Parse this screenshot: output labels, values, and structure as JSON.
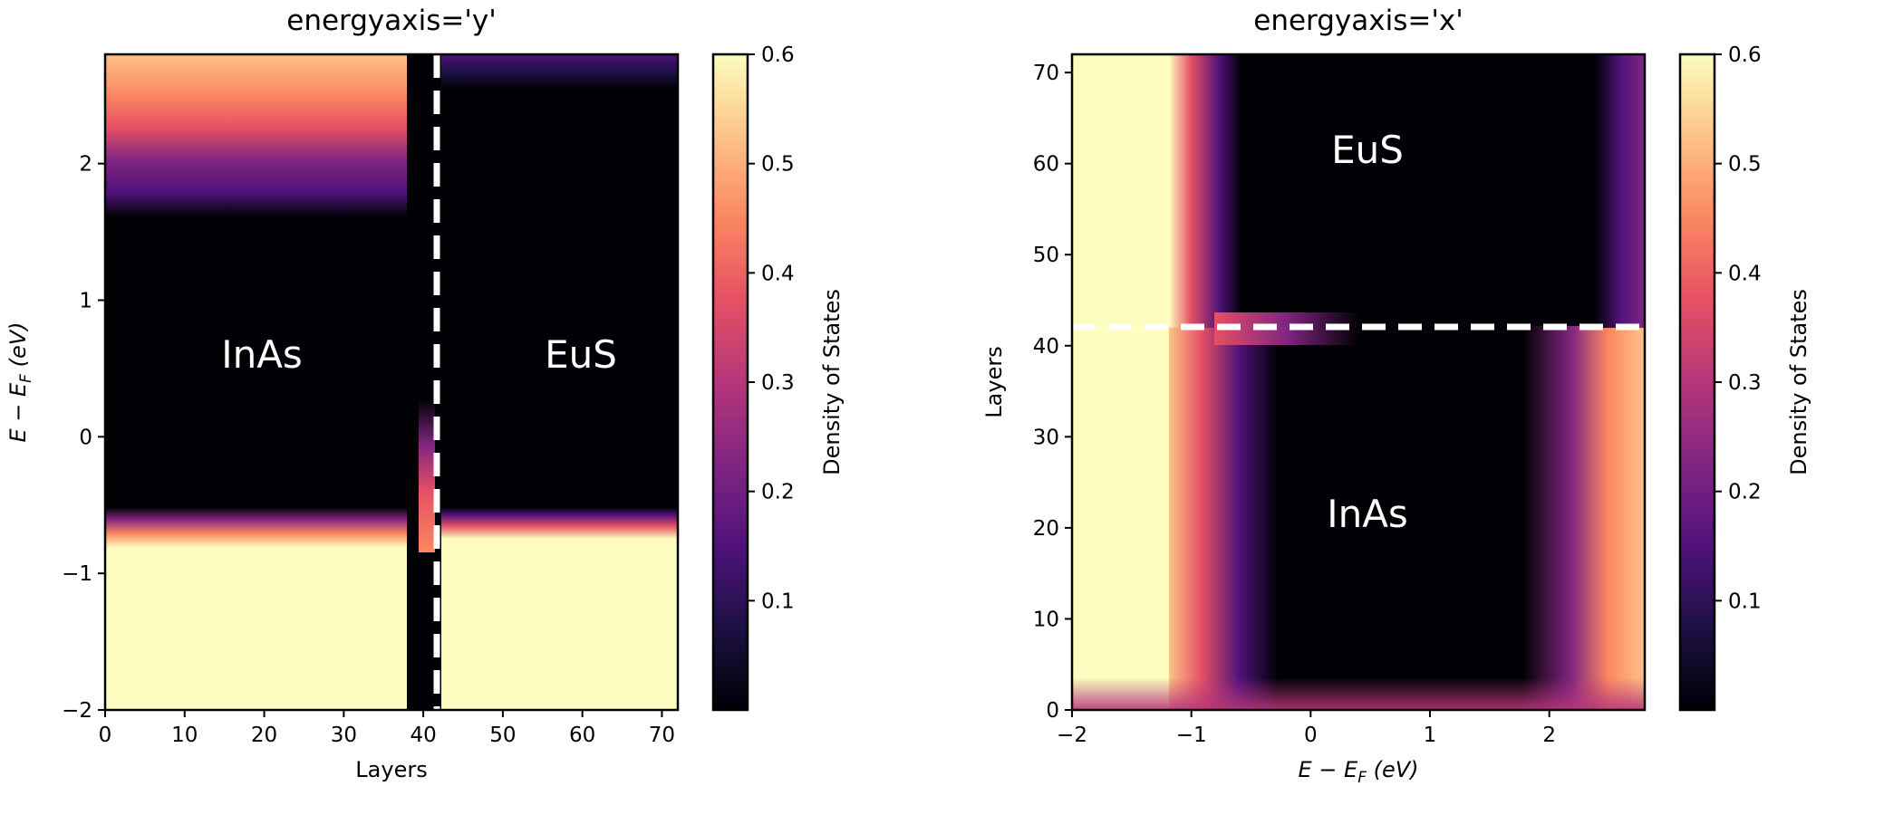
{
  "figure": {
    "background": "#ffffff",
    "colormap": "magma"
  },
  "chart_data": [
    {
      "type": "heatmap",
      "title": "energyaxis='y'",
      "xlabel": "Layers",
      "ylabel": "E − E_F (eV)",
      "ylabel_parts": {
        "main": "E − E",
        "sub": "F",
        "unit": " (eV)"
      },
      "xlim": [
        0,
        72
      ],
      "ylim": [
        -2,
        2.8
      ],
      "xticks": [
        0,
        10,
        20,
        30,
        40,
        50,
        60,
        70
      ],
      "yticks": [
        -2,
        -1,
        0,
        1,
        2
      ],
      "ytick_labels": [
        "−2",
        "−1",
        "0",
        "1",
        "2"
      ],
      "energy_axis": "y",
      "interface": {
        "layer": 42,
        "style": "dashed",
        "color": "#ffffff"
      },
      "region_labels": [
        {
          "text": "InAs",
          "layer": 20,
          "energy": 0.58
        },
        {
          "text": "EuS",
          "layer": 60,
          "energy": 0.58
        }
      ],
      "colorbar": {
        "label": "Density of States",
        "range": [
          0,
          0.6
        ],
        "ticks": [
          0.1,
          0.2,
          0.3,
          0.4,
          0.5,
          0.6
        ]
      },
      "regions": {
        "InAs": {
          "layers": [
            0,
            42
          ],
          "valence_band_edge_eV": -0.7,
          "conduction_band_edge_eV": 1.3,
          "dos_max": 0.6
        },
        "EuS": {
          "layers": [
            42,
            72
          ],
          "valence_band_edge_eV": -0.75,
          "conduction_band_edge_eV": 2.2,
          "dos_max": 0.6
        }
      }
    },
    {
      "type": "heatmap",
      "title": "energyaxis='x'",
      "xlabel": "E − E_F (eV)",
      "xlabel_parts": {
        "main": "E − E",
        "sub": "F",
        "unit": " (eV)"
      },
      "ylabel": "Layers",
      "xlim": [
        -2,
        2.8
      ],
      "ylim": [
        0,
        72
      ],
      "xticks": [
        -2,
        -1,
        0,
        1,
        2
      ],
      "xtick_labels": [
        "−2",
        "−1",
        "0",
        "1",
        "2"
      ],
      "yticks": [
        0,
        10,
        20,
        30,
        40,
        50,
        60,
        70
      ],
      "energy_axis": "x",
      "interface": {
        "layer": 42,
        "style": "dashed",
        "color": "#ffffff"
      },
      "region_labels": [
        {
          "text": "EuS",
          "energy": 0.5,
          "layer": 61
        },
        {
          "text": "InAs",
          "energy": 0.5,
          "layer": 21
        }
      ],
      "colorbar": {
        "label": "Density of States",
        "range": [
          0,
          0.6
        ],
        "ticks": [
          0.1,
          0.2,
          0.3,
          0.4,
          0.5,
          0.6
        ]
      },
      "regions": {
        "InAs": {
          "layers": [
            0,
            42
          ],
          "valence_band_edge_eV": -0.55,
          "conduction_band_edge_eV": 1.5,
          "dos_max": 0.6
        },
        "EuS": {
          "layers": [
            42,
            72
          ],
          "valence_band_edge_eV": -0.85,
          "conduction_band_edge_eV": 2.2,
          "dos_max": 0.6
        }
      }
    }
  ]
}
